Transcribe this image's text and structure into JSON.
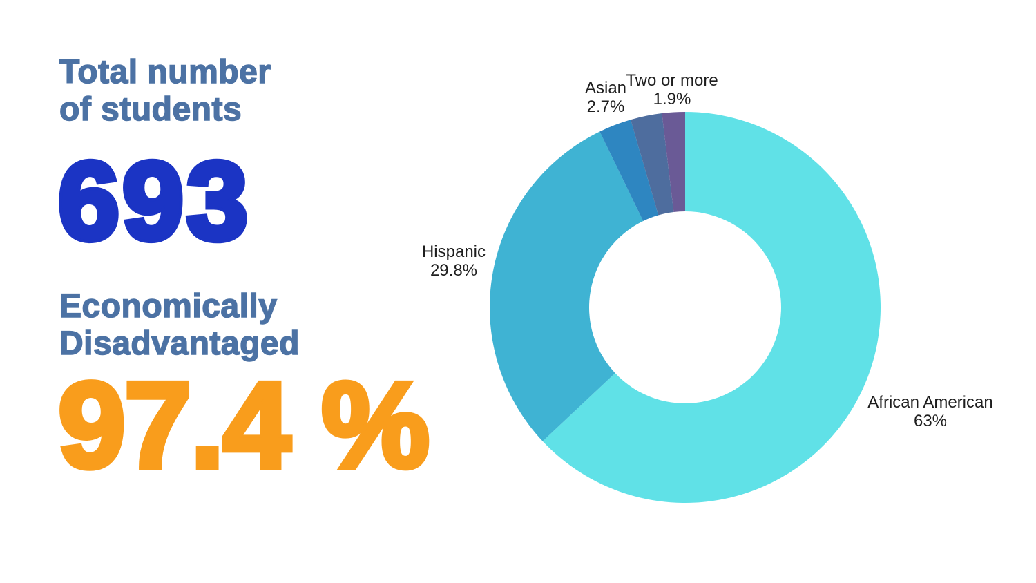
{
  "page": {
    "background_color": "#ffffff"
  },
  "stats": {
    "total_label_line1": "Total number",
    "total_label_line2": "of students",
    "total_value": "693",
    "total_value_color": "#1B34C4",
    "econ_label_line1": "Economically",
    "econ_label_line2": "Disadvantaged",
    "econ_value": "97.4 %",
    "econ_value_color": "#F99D1C",
    "heading_color": "#4C72A4"
  },
  "chart_data": {
    "type": "pie",
    "variant": "donut",
    "title": "",
    "start_angle_deg": 0,
    "direction": "clockwise",
    "inner_radius_ratio": 0.49,
    "legend_position": "outside-labels",
    "label_text_color": "#1E1E1E",
    "segments": [
      {
        "label": "African American",
        "value": 63,
        "display_value": "63%",
        "color": "#60E1E7"
      },
      {
        "label": "Hispanic",
        "value": 29.8,
        "display_value": "29.8%",
        "color": "#3FB3D3"
      },
      {
        "label": "Asian",
        "value": 2.7,
        "display_value": "2.7%",
        "color": "#2E86C1"
      },
      {
        "label": "",
        "value": 2.6,
        "display_value": "",
        "color": "#4E6D9E"
      },
      {
        "label": "Two or more",
        "value": 1.9,
        "display_value": "1.9%",
        "color": "#6A5A96"
      }
    ]
  }
}
